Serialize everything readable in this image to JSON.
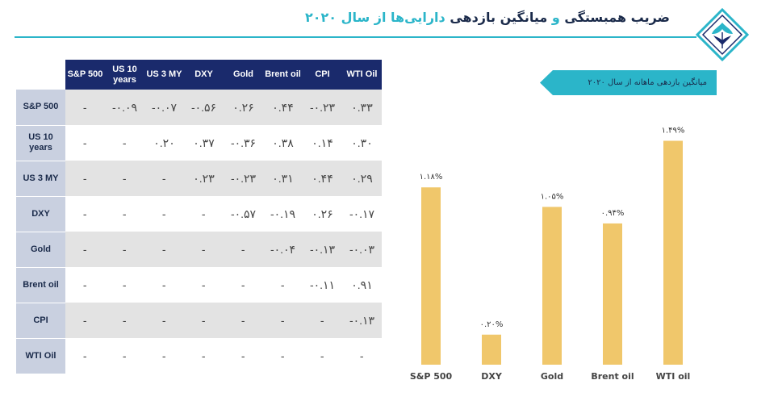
{
  "header": {
    "title_part1": "ضریب همبستگی",
    "title_conj": "و",
    "title_part2": "میانگین بازدهی",
    "title_part3": "دارایی‌ها از سال ۲۰۲۰"
  },
  "colors": {
    "accent": "#2bb5c9",
    "navy": "#1a2a6c",
    "bar": "#f0c76b",
    "row_header": "#c9d0e0",
    "stripe": "#e3e3e3"
  },
  "matrix": {
    "columns": [
      "S&P 500",
      "US 10 years",
      "US 3 MY",
      "DXY",
      "Gold",
      "Brent oil",
      "CPI",
      "WTI Oil"
    ],
    "rows": [
      {
        "label": "S&P 500",
        "cells": [
          "-",
          "-۰.۰۹",
          "-۰.۰۷",
          "-۰.۵۶",
          "۰.۲۶",
          "۰.۴۴",
          "-۰.۲۳",
          "۰.۳۳"
        ]
      },
      {
        "label": "US 10 years",
        "cells": [
          "-",
          "-",
          "۰.۲۰",
          "۰.۳۷",
          "-۰.۳۶",
          "۰.۳۸",
          "۰.۱۴",
          "۰.۳۰"
        ]
      },
      {
        "label": "US 3 MY",
        "cells": [
          "-",
          "-",
          "-",
          "۰.۲۳",
          "-۰.۲۳",
          "۰.۳۱",
          "۰.۴۴",
          "۰.۲۹"
        ]
      },
      {
        "label": "DXY",
        "cells": [
          "-",
          "-",
          "-",
          "-",
          "-۰.۵۷",
          "-۰.۱۹",
          "۰.۲۶",
          "-۰.۱۷"
        ]
      },
      {
        "label": "Gold",
        "cells": [
          "-",
          "-",
          "-",
          "-",
          "-",
          "-۰.۰۴",
          "-۰.۱۳",
          "-۰.۰۳"
        ]
      },
      {
        "label": "Brent oil",
        "cells": [
          "-",
          "-",
          "-",
          "-",
          "-",
          "-",
          "-۰.۱۱",
          "۰.۹۱"
        ]
      },
      {
        "label": "CPI",
        "cells": [
          "-",
          "-",
          "-",
          "-",
          "-",
          "-",
          "-",
          "-۰.۱۳"
        ]
      },
      {
        "label": "WTI Oil",
        "cells": [
          "-",
          "-",
          "-",
          "-",
          "-",
          "-",
          "-",
          "-"
        ]
      }
    ]
  },
  "chart_data": {
    "type": "bar",
    "title": "میانگین بازدهی ماهانه از سال ۲۰۲۰",
    "categories": [
      "S&P 500",
      "DXY",
      "Gold",
      "Brent oil",
      "WTI oil"
    ],
    "values": [
      1.18,
      0.2,
      1.05,
      0.94,
      1.49
    ],
    "value_labels": [
      "۱.۱۸%",
      "۰.۲۰%",
      "۱.۰۵%",
      "۰.۹۴%",
      "۱.۴۹%"
    ],
    "xlabel": "",
    "ylabel": "",
    "ylim": [
      0,
      1.6
    ],
    "grid": false,
    "legend": "none"
  }
}
